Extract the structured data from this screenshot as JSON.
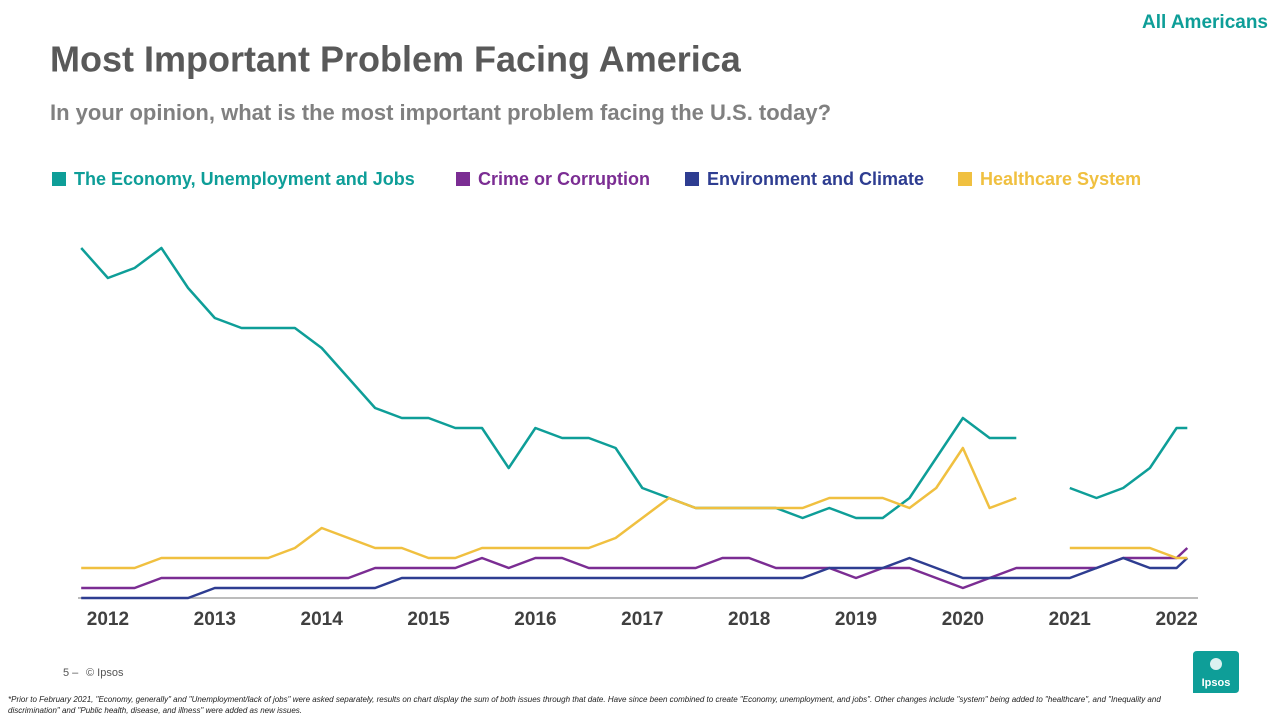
{
  "chart_data": {
    "type": "line",
    "title": "Most Important Problem Facing America",
    "subtitle": "In your opinion, what is the most important problem facing the U.S. today?",
    "x": [
      2011.75,
      2012.0,
      2012.25,
      2012.5,
      2012.75,
      2013.0,
      2013.25,
      2013.5,
      2013.75,
      2014.0,
      2014.25,
      2014.5,
      2014.75,
      2015.0,
      2015.25,
      2015.5,
      2015.75,
      2016.0,
      2016.25,
      2016.5,
      2016.75,
      2017.0,
      2017.25,
      2017.5,
      2017.75,
      2018.0,
      2018.25,
      2018.5,
      2018.75,
      2019.0,
      2019.25,
      2019.5,
      2019.75,
      2020.0,
      2020.25,
      2020.5,
      2020.75,
      2021.0,
      2021.25,
      2021.5,
      2021.75,
      2022.0,
      2022.1
    ],
    "xlim": [
      2011.72,
      2022.2
    ],
    "xticks": [
      2012,
      2013,
      2014,
      2015,
      2016,
      2017,
      2018,
      2019,
      2020,
      2021,
      2022
    ],
    "ylim": [
      0,
      36
    ],
    "series": [
      {
        "name": "The Economy, Unemployment and Jobs",
        "color": "#0e9e98",
        "values": [
          35,
          32,
          33,
          35,
          31,
          28,
          27,
          27,
          27,
          25,
          22,
          19,
          18,
          18,
          17,
          17,
          13,
          17,
          16,
          16,
          15,
          11,
          10,
          9,
          9,
          9,
          9,
          8,
          9,
          8,
          8,
          10,
          14,
          18,
          16,
          16,
          null,
          11,
          10,
          11,
          13,
          17,
          17
        ]
      },
      {
        "name": "Crime or Corruption",
        "color": "#7b2d93",
        "values": [
          1,
          1,
          1,
          2,
          2,
          2,
          2,
          2,
          2,
          2,
          2,
          3,
          3,
          3,
          3,
          4,
          3,
          4,
          4,
          3,
          3,
          3,
          3,
          3,
          4,
          4,
          3,
          3,
          3,
          2,
          3,
          3,
          2,
          1,
          2,
          3,
          3,
          3,
          3,
          4,
          4,
          4,
          5
        ]
      },
      {
        "name": "Environment and Climate",
        "color": "#2e3d91",
        "values": [
          0,
          0,
          0,
          0,
          0,
          1,
          1,
          1,
          1,
          1,
          1,
          1,
          2,
          2,
          2,
          2,
          2,
          2,
          2,
          2,
          2,
          2,
          2,
          2,
          2,
          2,
          2,
          2,
          3,
          3,
          3,
          4,
          3,
          2,
          2,
          2,
          2,
          2,
          3,
          4,
          3,
          3,
          4
        ]
      },
      {
        "name": "Healthcare System",
        "color": "#f0c040",
        "values": [
          3,
          3,
          3,
          4,
          4,
          4,
          4,
          4,
          5,
          7,
          6,
          5,
          5,
          4,
          4,
          5,
          5,
          5,
          5,
          5,
          6,
          8,
          10,
          9,
          9,
          9,
          9,
          9,
          10,
          10,
          10,
          9,
          11,
          15,
          9,
          10,
          null,
          5,
          5,
          5,
          5,
          4,
          4
        ]
      }
    ]
  },
  "slide": {
    "tag": "All Americans",
    "page_number": "5 –",
    "copyright": "© Ipsos",
    "logo": "Ipsos",
    "footnote": "*Prior to February 2021, \"Economy, generally\" and \"Unemployment/lack of jobs\" were asked separately, results on chart display the sum of both issues through that date. Have since been combined to create \"Economy, unemployment, and jobs\". Other changes include \"system\" being added to \"healthcare\", and \"Inequality and discrimination\" and \"Public health, disease, and illness\" were added as new issues."
  }
}
